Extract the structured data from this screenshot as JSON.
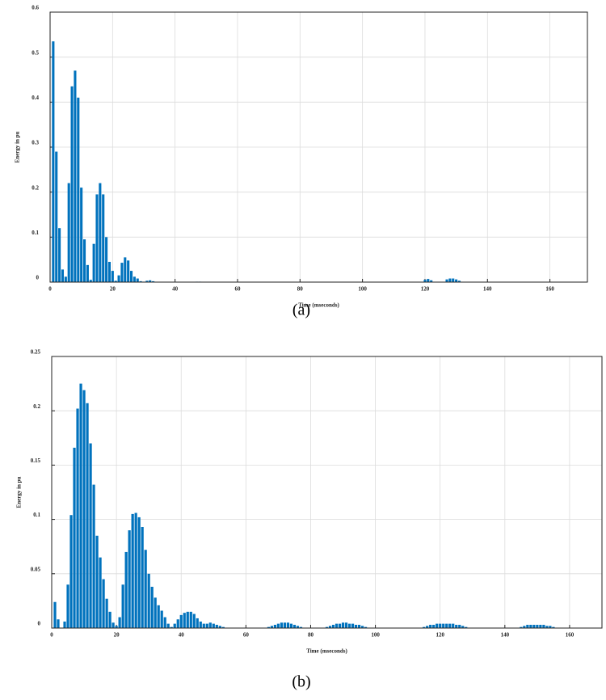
{
  "chart_data": [
    {
      "type": "bar",
      "caption": "(a)",
      "xlabel": "Time (mseconds)",
      "ylabel": "Energy in pu",
      "color": "#0072bd",
      "grid": true,
      "xlim": [
        0,
        172
      ],
      "xticks": [
        0,
        20,
        40,
        60,
        80,
        100,
        120,
        140,
        160
      ],
      "ylim": [
        0,
        0.6
      ],
      "yticks": [
        0,
        0.1,
        0.2,
        0.3,
        0.4,
        0.5,
        0.6
      ],
      "x": [
        1,
        2,
        3,
        4,
        5,
        6,
        7,
        8,
        9,
        10,
        11,
        12,
        13,
        14,
        15,
        16,
        17,
        18,
        19,
        20,
        21,
        22,
        23,
        24,
        25,
        26,
        27,
        28,
        29,
        30,
        31,
        32,
        33,
        47,
        48,
        120,
        121,
        122,
        127,
        128,
        129,
        130,
        131
      ],
      "values": [
        0.535,
        0.29,
        0.12,
        0.028,
        0.012,
        0.22,
        0.435,
        0.47,
        0.41,
        0.21,
        0.095,
        0.038,
        0.005,
        0.085,
        0.195,
        0.22,
        0.195,
        0.1,
        0.045,
        0.025,
        0.003,
        0.015,
        0.043,
        0.055,
        0.048,
        0.025,
        0.012,
        0.008,
        0.002,
        0.001,
        0.003,
        0.004,
        0.002,
        0.001,
        0.001,
        0.005,
        0.007,
        0.004,
        0.006,
        0.008,
        0.008,
        0.006,
        0.003
      ]
    },
    {
      "type": "bar",
      "caption": "(b)",
      "xlabel": "Time (mseconds)",
      "ylabel": "Energy in pu",
      "color": "#0072bd",
      "grid": true,
      "xlim": [
        0,
        170
      ],
      "xticks": [
        0,
        20,
        40,
        60,
        80,
        100,
        120,
        140,
        160
      ],
      "ylim": [
        0,
        0.25
      ],
      "yticks": [
        0,
        0.05,
        0.1,
        0.15,
        0.2,
        0.25
      ],
      "x": [
        1,
        2,
        4,
        5,
        6,
        7,
        8,
        9,
        10,
        11,
        12,
        13,
        14,
        15,
        16,
        17,
        18,
        19,
        20,
        21,
        22,
        23,
        24,
        25,
        26,
        27,
        28,
        29,
        30,
        31,
        32,
        33,
        34,
        35,
        36,
        37,
        38,
        39,
        40,
        41,
        42,
        43,
        44,
        45,
        46,
        47,
        48,
        49,
        50,
        51,
        52,
        53,
        67,
        68,
        69,
        70,
        71,
        72,
        73,
        74,
        75,
        76,
        77,
        85,
        86,
        87,
        88,
        89,
        90,
        91,
        92,
        93,
        94,
        95,
        96,
        97,
        115,
        116,
        117,
        118,
        119,
        120,
        121,
        122,
        123,
        124,
        125,
        126,
        127,
        128,
        145,
        146,
        147,
        148,
        149,
        150,
        151,
        152,
        153,
        154,
        155
      ],
      "values": [
        0.024,
        0.008,
        0.006,
        0.04,
        0.104,
        0.166,
        0.202,
        0.225,
        0.219,
        0.207,
        0.17,
        0.132,
        0.085,
        0.065,
        0.045,
        0.027,
        0.015,
        0.005,
        0.002,
        0.01,
        0.04,
        0.07,
        0.09,
        0.105,
        0.106,
        0.102,
        0.093,
        0.072,
        0.05,
        0.038,
        0.028,
        0.021,
        0.016,
        0.01,
        0.004,
        0.001,
        0.004,
        0.008,
        0.012,
        0.014,
        0.015,
        0.015,
        0.013,
        0.009,
        0.006,
        0.004,
        0.004,
        0.005,
        0.004,
        0.003,
        0.002,
        0.001,
        0.001,
        0.002,
        0.003,
        0.004,
        0.005,
        0.005,
        0.005,
        0.004,
        0.003,
        0.002,
        0.001,
        0.001,
        0.002,
        0.003,
        0.004,
        0.004,
        0.005,
        0.005,
        0.004,
        0.004,
        0.003,
        0.003,
        0.002,
        0.001,
        0.001,
        0.002,
        0.003,
        0.003,
        0.004,
        0.004,
        0.004,
        0.004,
        0.004,
        0.004,
        0.003,
        0.003,
        0.002,
        0.001,
        0.001,
        0.002,
        0.003,
        0.003,
        0.003,
        0.003,
        0.003,
        0.003,
        0.002,
        0.002,
        0.001
      ]
    }
  ]
}
